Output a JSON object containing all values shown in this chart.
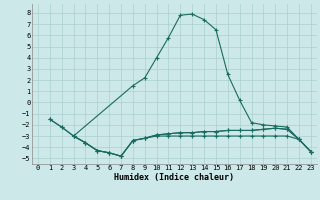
{
  "xlabel": "Humidex (Indice chaleur)",
  "xlim": [
    -0.5,
    23.5
  ],
  "ylim": [
    -5.5,
    8.8
  ],
  "yticks": [
    -5,
    -4,
    -3,
    -2,
    -1,
    0,
    1,
    2,
    3,
    4,
    5,
    6,
    7,
    8
  ],
  "xticks": [
    0,
    1,
    2,
    3,
    4,
    5,
    6,
    7,
    8,
    9,
    10,
    11,
    12,
    13,
    14,
    15,
    16,
    17,
    18,
    19,
    20,
    21,
    22,
    23
  ],
  "bg_color": "#cce8e8",
  "grid_color": "#aacfcf",
  "line_color": "#1a6b60",
  "line1_x": [
    1,
    2,
    3,
    4,
    5,
    6,
    7,
    8,
    9,
    10,
    11,
    12,
    13,
    14,
    15,
    16,
    17,
    18,
    19,
    20,
    21,
    22,
    23
  ],
  "line1_y": [
    -1.5,
    -2.2,
    -3.0,
    -3.6,
    -4.3,
    -4.5,
    -4.8,
    -3.4,
    -3.2,
    -2.9,
    -2.8,
    -2.7,
    -2.7,
    -2.6,
    -2.6,
    -2.5,
    -2.5,
    -2.5,
    -2.4,
    -2.3,
    -2.4,
    -3.3,
    -4.4
  ],
  "line2_x": [
    1,
    2,
    3,
    8,
    9,
    10,
    11,
    12,
    13,
    14,
    15,
    16,
    17,
    18,
    19,
    20,
    21,
    22,
    23
  ],
  "line2_y": [
    -1.5,
    -2.2,
    -3.0,
    1.5,
    2.2,
    4.0,
    5.8,
    7.8,
    7.9,
    7.4,
    6.5,
    2.5,
    0.2,
    -1.8,
    -2.0,
    -2.1,
    -2.2,
    -3.3,
    -4.4
  ],
  "line3_x": [
    3,
    4,
    5,
    6,
    7,
    8,
    9,
    10,
    11,
    12,
    13,
    14,
    15,
    16,
    17,
    18,
    19,
    20,
    21,
    22,
    23
  ],
  "line3_y": [
    -3.0,
    -3.6,
    -4.3,
    -4.5,
    -4.8,
    -3.4,
    -3.2,
    -2.9,
    -2.8,
    -2.7,
    -2.7,
    -2.6,
    -2.6,
    -2.5,
    -2.5,
    -2.5,
    -2.4,
    -2.3,
    -2.4,
    -3.3,
    -4.4
  ],
  "line4_x": [
    3,
    4,
    5,
    6,
    7,
    8,
    9,
    10,
    11,
    12,
    13,
    14,
    15,
    16,
    17,
    18,
    19,
    20,
    21,
    22,
    23
  ],
  "line4_y": [
    -3.0,
    -3.6,
    -4.3,
    -4.5,
    -4.8,
    -3.4,
    -3.2,
    -3.0,
    -3.0,
    -3.0,
    -3.0,
    -3.0,
    -3.0,
    -3.0,
    -3.0,
    -3.0,
    -3.0,
    -3.0,
    -3.0,
    -3.3,
    -4.4
  ]
}
